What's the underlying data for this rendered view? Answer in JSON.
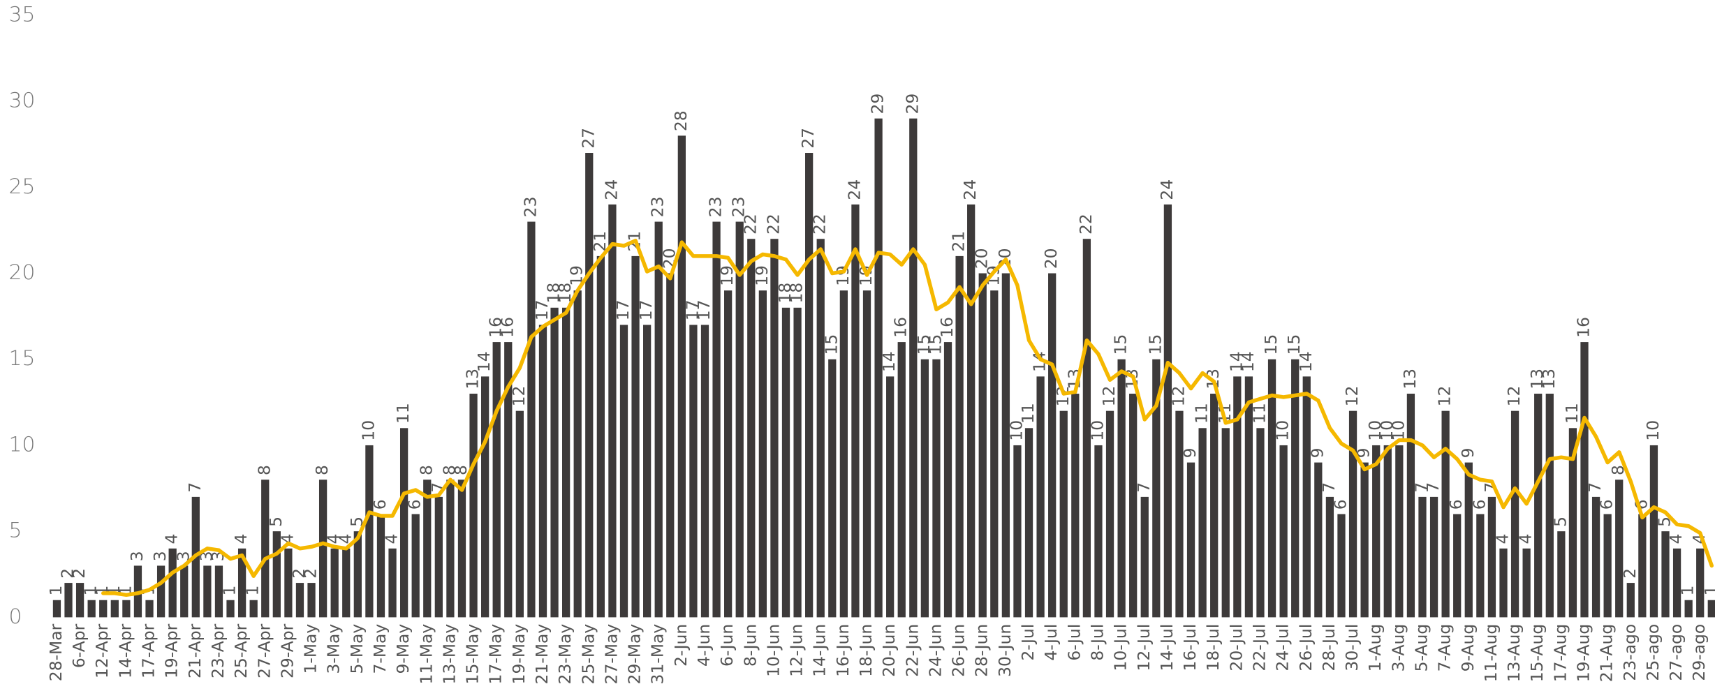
{
  "chart_data": {
    "type": "bar",
    "categories": [
      "28-Mar",
      null,
      "6-Apr",
      null,
      "12-Apr",
      null,
      "14-Apr",
      null,
      "17-Apr",
      null,
      "19-Apr",
      null,
      "21-Apr",
      null,
      "23-Apr",
      null,
      "25-Apr",
      null,
      "27-Apr",
      null,
      "29-Apr",
      null,
      "1-May",
      null,
      "3-May",
      null,
      "5-May",
      null,
      "7-May",
      null,
      "9-May",
      null,
      "11-May",
      null,
      "13-May",
      null,
      "15-May",
      null,
      "17-May",
      null,
      "19-May",
      null,
      "21-May",
      null,
      "23-May",
      null,
      "25-May",
      null,
      "27-May",
      null,
      "29-May",
      null,
      "31-May",
      null,
      "2-Jun",
      null,
      "4-Jun",
      null,
      "6-Jun",
      null,
      "8-Jun",
      null,
      "10-Jun",
      null,
      "12-Jun",
      null,
      "14-Jun",
      null,
      "16-Jun",
      null,
      "18-Jun",
      null,
      "20-Jun",
      null,
      "22-Jun",
      null,
      "24-Jun",
      null,
      "26-Jun",
      null,
      "28-Jun",
      null,
      "30-Jun",
      null,
      "2-Jul",
      null,
      "4-Jul",
      null,
      "6-Jul",
      null,
      "8-Jul",
      null,
      "10-Jul",
      null,
      "12-Jul",
      null,
      "14-Jul",
      null,
      "16-Jul",
      null,
      "18-Jul",
      null,
      "20-Jul",
      null,
      "22-Jul",
      null,
      "24-Jul",
      null,
      "26-Jul",
      null,
      "28-Jul",
      null,
      "30-Jul",
      null,
      "1-Aug",
      null,
      "3-Aug",
      null,
      "5-Aug",
      null,
      "7-Aug",
      null,
      "9-Aug",
      null,
      "11-Aug",
      null,
      "13-Aug",
      null,
      "15-Aug",
      null,
      "17-Aug",
      null,
      "19-Aug",
      null,
      "21-Aug",
      null,
      "23-ago",
      null,
      "25-ago",
      null,
      "27-ago",
      null,
      "29-ago",
      null
    ],
    "series": [
      {
        "type": "bar",
        "color": "#3d3a3a",
        "values": [
          1,
          2,
          2,
          1,
          1,
          1,
          1,
          3,
          1,
          3,
          4,
          3,
          7,
          3,
          3,
          1,
          4,
          1,
          8,
          5,
          4,
          2,
          2,
          8,
          4,
          4,
          5,
          10,
          6,
          4,
          11,
          6,
          8,
          7,
          8,
          8,
          13,
          14,
          16,
          16,
          12,
          23,
          17,
          18,
          18,
          19,
          27,
          21,
          24,
          17,
          21,
          17,
          23,
          20,
          28,
          17,
          17,
          23,
          19,
          23,
          22,
          19,
          22,
          18,
          18,
          27,
          22,
          15,
          19,
          24,
          19,
          29,
          14,
          16,
          29,
          15,
          15,
          16,
          21,
          24,
          20,
          19,
          20,
          10,
          11,
          14,
          20,
          12,
          13,
          22,
          10,
          12,
          15,
          13,
          7,
          15,
          24,
          12,
          9,
          11,
          13,
          11,
          14,
          14,
          11,
          15,
          10,
          15,
          14,
          9,
          7,
          6,
          12,
          9,
          10,
          10,
          10,
          13,
          7,
          7,
          12,
          6,
          9,
          6,
          7,
          4,
          12,
          4,
          13,
          13,
          5,
          11,
          16,
          7,
          6,
          8,
          2,
          6,
          10,
          5,
          4,
          1,
          4,
          1
        ]
      },
      {
        "type": "line",
        "color": "#f5b800",
        "values": [
          null,
          null,
          null,
          null,
          1.4,
          1.4,
          1.3,
          1.4,
          1.6,
          2.0,
          2.6,
          3.0,
          3.6,
          4.0,
          3.9,
          3.4,
          3.6,
          2.4,
          3.4,
          3.7,
          4.3,
          4.0,
          4.1,
          4.3,
          4.1,
          4.0,
          4.6,
          6.1,
          5.9,
          5.9,
          7.2,
          7.4,
          7.0,
          7.1,
          8.0,
          7.4,
          8.9,
          10.2,
          12.0,
          13.4,
          14.5,
          16.3,
          16.9,
          17.3,
          17.7,
          19.0,
          20.0,
          20.9,
          21.7,
          21.6,
          21.9,
          20.1,
          20.4,
          19.7,
          21.8,
          21.0,
          21.0,
          21.0,
          20.9,
          19.9,
          20.7,
          21.1,
          21.0,
          20.8,
          19.9,
          20.8,
          21.4,
          20.0,
          20.1,
          21.4,
          19.9,
          21.2,
          21.1,
          20.5,
          21.4,
          20.5,
          17.9,
          18.3,
          19.2,
          18.2,
          19.3,
          20.1,
          20.8,
          19.3,
          16.1,
          15.0,
          14.7,
          13.0,
          13.1,
          16.1,
          15.3,
          13.8,
          14.3,
          14.0,
          11.5,
          12.3,
          14.8,
          14.2,
          13.3,
          14.2,
          13.7,
          11.3,
          11.5,
          12.5,
          12.7,
          12.9,
          12.8,
          12.9,
          13.0,
          12.6,
          11.0,
          10.1,
          9.7,
          8.6,
          8.9,
          9.8,
          10.3,
          10.3,
          10.0,
          9.3,
          9.8,
          9.2,
          8.3,
          8.0,
          7.9,
          6.4,
          7.5,
          6.6,
          7.9,
          9.2,
          9.3,
          9.2,
          11.6,
          10.5,
          9.0,
          9.6,
          7.9,
          5.8,
          6.4,
          6.1,
          5.4,
          5.3,
          4.9,
          3.0
        ]
      }
    ],
    "ylim": [
      0,
      35
    ],
    "yticks": [
      0,
      5,
      10,
      15,
      20,
      25,
      30,
      35
    ],
    "grid": false
  }
}
